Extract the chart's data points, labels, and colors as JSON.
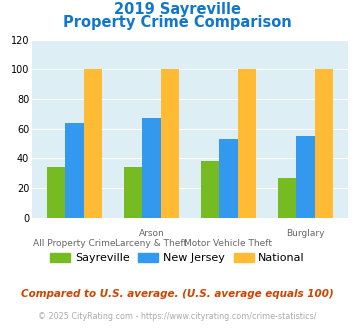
{
  "title_line1": "2019 Sayreville",
  "title_line2": "Property Crime Comparison",
  "cat_labels_line1": [
    "All Property Crime",
    "Arson",
    "Motor Vehicle Theft",
    "Burglary"
  ],
  "cat_labels_line2": [
    "",
    "Larceny & Theft",
    "",
    ""
  ],
  "sayreville": [
    34,
    34,
    38,
    27
  ],
  "new_jersey": [
    64,
    67,
    53,
    55
  ],
  "national": [
    100,
    100,
    100,
    100
  ],
  "colors": {
    "sayreville": "#77bb22",
    "new_jersey": "#3399ee",
    "national": "#ffbb33"
  },
  "ylim": [
    0,
    120
  ],
  "yticks": [
    0,
    20,
    40,
    60,
    80,
    100,
    120
  ],
  "title_color": "#1177cc",
  "bg_color": "#ddeef5",
  "footnote1": "Compared to U.S. average. (U.S. average equals 100)",
  "footnote2": "© 2025 CityRating.com - https://www.cityrating.com/crime-statistics/",
  "footnote1_color": "#cc4400",
  "footnote2_color": "#aaaaaa",
  "footnote2_link_color": "#4499cc"
}
